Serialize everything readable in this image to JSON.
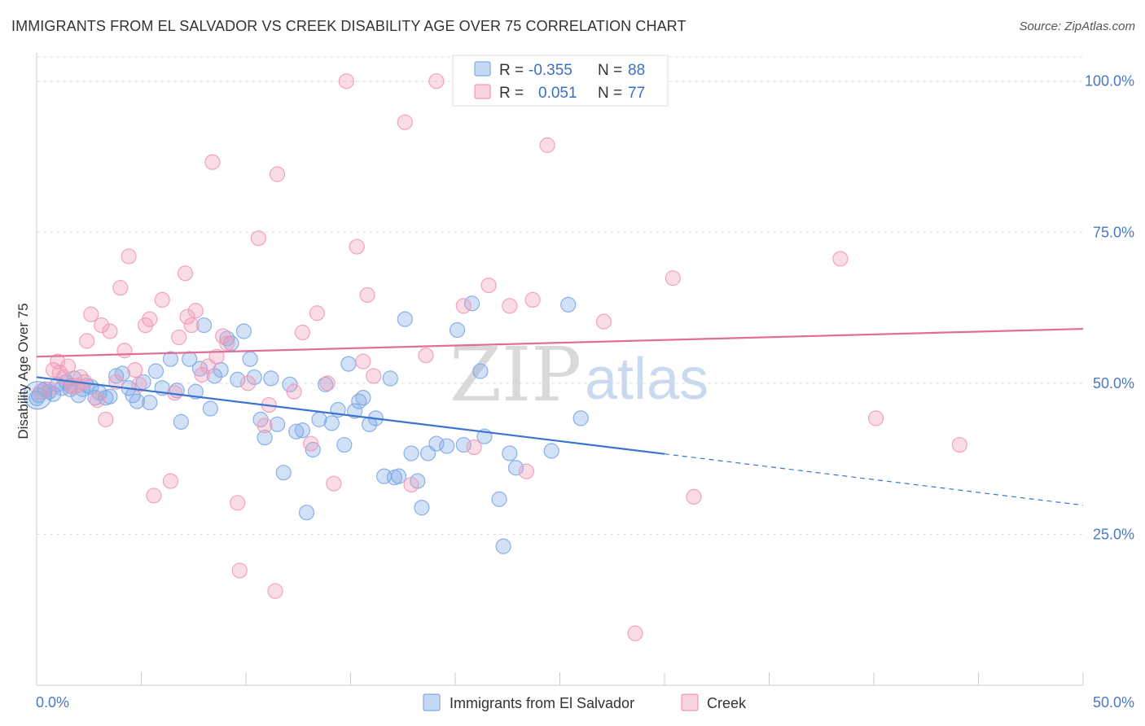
{
  "header": {
    "title": "IMMIGRANTS FROM EL SALVADOR VS CREEK DISABILITY AGE OVER 75 CORRELATION CHART",
    "source": "Source: ZipAtlas.com"
  },
  "watermark": {
    "zip": "ZIP",
    "atlas": "atlas"
  },
  "legend_box": {
    "rows": [
      {
        "r_label": "R =",
        "r_value": "-0.355",
        "n_label": "N =",
        "n_value": "88",
        "color": "#7ea8e6"
      },
      {
        "r_label": "R =",
        "r_value": "0.051",
        "n_label": "N =",
        "n_value": "77",
        "color": "#f19ab7"
      }
    ]
  },
  "chart_data": {
    "type": "scatter",
    "xlabel": "",
    "ylabel": "Disability Age Over 75",
    "xlim": [
      0,
      50
    ],
    "ylim": [
      0,
      104
    ],
    "x_tick_labels": [
      "0.0%",
      "50.0%"
    ],
    "y_ticks": [
      25,
      50,
      75,
      100
    ],
    "y_tick_labels": [
      "25.0%",
      "50.0%",
      "75.0%",
      "100.0%"
    ],
    "grid": "horizontal dashed",
    "legend_position": "top-center",
    "series": [
      {
        "name": "Immigrants from El Salvador",
        "color": "#7ea8e6",
        "line_color": "#3a74d0",
        "trend": {
          "x0": 0,
          "y0": 51.0,
          "x1": 30,
          "y1": 38.3,
          "dash_to_x": 50,
          "dash_to_y": 29.8
        },
        "points": [
          [
            0.1,
            48.0
          ],
          [
            0.4,
            49.0
          ],
          [
            0.6,
            48.6
          ],
          [
            0.8,
            48.2
          ],
          [
            1.0,
            49.8
          ],
          [
            1.2,
            49.2
          ],
          [
            1.4,
            50.2
          ],
          [
            1.6,
            49.0
          ],
          [
            1.8,
            50.8
          ],
          [
            2.0,
            48.0
          ],
          [
            2.2,
            49.0
          ],
          [
            2.4,
            49.6
          ],
          [
            2.6,
            49.4
          ],
          [
            2.8,
            47.6
          ],
          [
            3.0,
            48.4
          ],
          [
            3.3,
            47.6
          ],
          [
            3.5,
            47.8
          ],
          [
            3.8,
            51.2
          ],
          [
            4.1,
            51.6
          ],
          [
            4.4,
            49.2
          ],
          [
            4.6,
            48.0
          ],
          [
            4.8,
            47.0
          ],
          [
            5.1,
            50.2
          ],
          [
            5.4,
            46.8
          ],
          [
            5.7,
            52.0
          ],
          [
            6.0,
            49.2
          ],
          [
            6.4,
            54.0
          ],
          [
            6.7,
            48.8
          ],
          [
            6.9,
            43.6
          ],
          [
            7.3,
            54.0
          ],
          [
            7.6,
            48.6
          ],
          [
            7.8,
            52.4
          ],
          [
            8.0,
            59.6
          ],
          [
            8.3,
            45.8
          ],
          [
            8.5,
            51.2
          ],
          [
            8.8,
            52.2
          ],
          [
            9.1,
            57.4
          ],
          [
            9.3,
            56.6
          ],
          [
            9.6,
            50.6
          ],
          [
            9.9,
            58.6
          ],
          [
            10.2,
            54.0
          ],
          [
            10.4,
            51.0
          ],
          [
            10.7,
            44.0
          ],
          [
            10.9,
            41.0
          ],
          [
            11.2,
            50.8
          ],
          [
            11.5,
            43.2
          ],
          [
            11.8,
            35.2
          ],
          [
            12.1,
            49.8
          ],
          [
            12.4,
            42.0
          ],
          [
            12.7,
            42.2
          ],
          [
            12.9,
            28.6
          ],
          [
            13.2,
            39.0
          ],
          [
            13.5,
            44.0
          ],
          [
            13.8,
            49.8
          ],
          [
            14.1,
            43.4
          ],
          [
            14.4,
            45.6
          ],
          [
            14.7,
            39.8
          ],
          [
            14.9,
            53.2
          ],
          [
            15.2,
            45.4
          ],
          [
            15.4,
            47.0
          ],
          [
            15.6,
            47.6
          ],
          [
            15.9,
            43.2
          ],
          [
            16.2,
            44.2
          ],
          [
            16.6,
            34.6
          ],
          [
            16.9,
            50.8
          ],
          [
            17.1,
            34.4
          ],
          [
            17.3,
            34.6
          ],
          [
            17.6,
            60.6
          ],
          [
            17.9,
            38.4
          ],
          [
            18.2,
            33.8
          ],
          [
            18.4,
            29.4
          ],
          [
            18.7,
            38.4
          ],
          [
            19.1,
            40.0
          ],
          [
            19.6,
            39.6
          ],
          [
            20.1,
            58.8
          ],
          [
            20.4,
            39.8
          ],
          [
            20.8,
            63.2
          ],
          [
            21.2,
            52.0
          ],
          [
            21.4,
            41.2
          ],
          [
            22.1,
            30.8
          ],
          [
            22.3,
            23.0
          ],
          [
            22.6,
            38.4
          ],
          [
            22.9,
            36.0
          ],
          [
            24.6,
            38.8
          ],
          [
            25.4,
            63.0
          ],
          [
            26.0,
            44.2
          ],
          [
            0.0,
            47.5
          ],
          [
            1.6,
            49.6
          ]
        ]
      },
      {
        "name": "Creek",
        "color": "#f19ab7",
        "line_color": "#e06e98",
        "trend": {
          "x0": 0,
          "y0": 54.4,
          "x1": 50,
          "y1": 59.0
        },
        "points": [
          [
            0.6,
            49.0
          ],
          [
            0.8,
            52.2
          ],
          [
            1.0,
            53.6
          ],
          [
            1.1,
            51.8
          ],
          [
            1.3,
            51.0
          ],
          [
            1.5,
            52.8
          ],
          [
            1.7,
            49.4
          ],
          [
            1.9,
            49.6
          ],
          [
            2.1,
            51.0
          ],
          [
            2.3,
            50.2
          ],
          [
            2.4,
            57.0
          ],
          [
            2.6,
            61.4
          ],
          [
            2.9,
            47.2
          ],
          [
            3.1,
            59.6
          ],
          [
            3.3,
            44.0
          ],
          [
            3.5,
            58.6
          ],
          [
            3.8,
            50.2
          ],
          [
            4.0,
            65.8
          ],
          [
            4.2,
            55.4
          ],
          [
            4.4,
            71.0
          ],
          [
            4.7,
            52.2
          ],
          [
            4.9,
            49.8
          ],
          [
            5.2,
            59.6
          ],
          [
            5.4,
            60.6
          ],
          [
            5.6,
            31.4
          ],
          [
            6.0,
            63.8
          ],
          [
            6.4,
            33.8
          ],
          [
            6.6,
            48.4
          ],
          [
            6.8,
            57.6
          ],
          [
            7.1,
            68.2
          ],
          [
            7.2,
            61.0
          ],
          [
            7.4,
            59.6
          ],
          [
            7.6,
            62.0
          ],
          [
            7.9,
            51.4
          ],
          [
            8.2,
            52.8
          ],
          [
            8.4,
            86.6
          ],
          [
            8.6,
            54.4
          ],
          [
            8.9,
            57.8
          ],
          [
            9.1,
            56.6
          ],
          [
            9.6,
            30.2
          ],
          [
            9.7,
            19.0
          ],
          [
            10.1,
            50.0
          ],
          [
            10.6,
            74.0
          ],
          [
            10.9,
            43.0
          ],
          [
            11.1,
            46.4
          ],
          [
            11.4,
            15.6
          ],
          [
            11.5,
            84.6
          ],
          [
            12.3,
            48.6
          ],
          [
            12.7,
            58.4
          ],
          [
            13.1,
            40.0
          ],
          [
            13.4,
            61.6
          ],
          [
            13.9,
            50.0
          ],
          [
            14.2,
            33.4
          ],
          [
            14.8,
            100.0
          ],
          [
            15.3,
            72.6
          ],
          [
            15.6,
            53.6
          ],
          [
            15.8,
            64.6
          ],
          [
            16.1,
            51.2
          ],
          [
            17.6,
            93.2
          ],
          [
            17.9,
            33.2
          ],
          [
            18.6,
            54.6
          ],
          [
            19.1,
            100.0
          ],
          [
            20.4,
            62.8
          ],
          [
            20.9,
            39.4
          ],
          [
            21.6,
            66.2
          ],
          [
            22.6,
            62.8
          ],
          [
            23.4,
            35.4
          ],
          [
            23.7,
            63.8
          ],
          [
            24.4,
            89.4
          ],
          [
            27.1,
            60.2
          ],
          [
            28.6,
            8.6
          ],
          [
            30.4,
            67.4
          ],
          [
            31.4,
            31.2
          ],
          [
            38.4,
            70.6
          ],
          [
            40.1,
            44.2
          ],
          [
            44.1,
            39.8
          ],
          [
            0.2,
            48.6
          ]
        ]
      }
    ]
  },
  "bottom_legend": {
    "items": [
      {
        "label": "Immigrants from El Salvador",
        "color": "#7ea8e6"
      },
      {
        "label": "Creek",
        "color": "#f19ab7"
      }
    ]
  }
}
